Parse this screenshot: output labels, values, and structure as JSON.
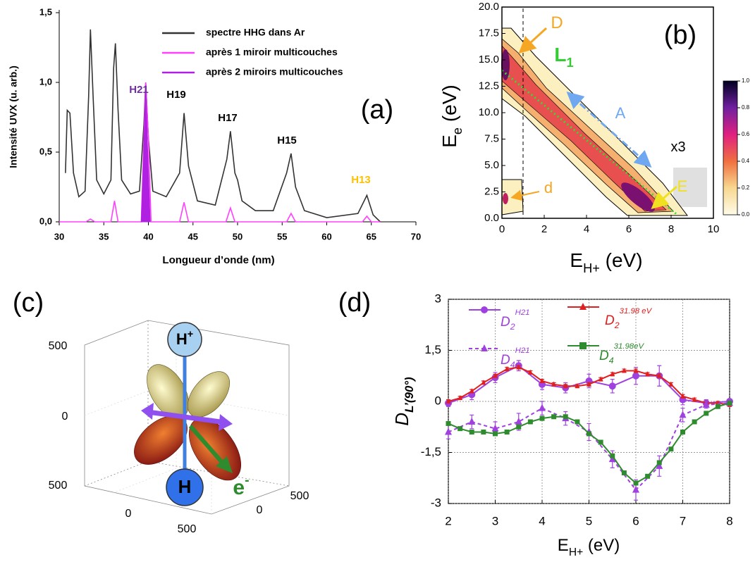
{
  "chart_data": [
    {
      "type": "line",
      "panel_label": "(a)",
      "xlabel": "Longueur d’onde (nm)",
      "ylabel": "Intensité UVX (u. arb.)",
      "xlim": [
        30,
        70
      ],
      "xticks": [
        30,
        35,
        40,
        45,
        50,
        55,
        60,
        65,
        70
      ],
      "ylim": [
        0,
        1.5
      ],
      "yticks": [
        {
          "value": 0,
          "label": "0,0"
        },
        {
          "value": 0.5,
          "label": "0,5"
        },
        {
          "value": 1,
          "label": "1,0"
        },
        {
          "value": 1.5,
          "label": "1,5"
        }
      ],
      "grid": false,
      "annotations": [
        {
          "text": "H21",
          "color": "#7030a0"
        },
        {
          "text": "H19",
          "color": "#000000"
        },
        {
          "text": "H17",
          "color": "#000000"
        },
        {
          "text": "H15",
          "color": "#000000"
        },
        {
          "text": "H13",
          "color": "#ffc000"
        }
      ],
      "series": [
        {
          "name": "spectre HHG dans Ar",
          "color": "#333333",
          "x": [
            30.7,
            30.9,
            31.2,
            31.6,
            32.2,
            32.9,
            33.3,
            33.5,
            33.8,
            34.2,
            35.0,
            35.8,
            36.1,
            36.3,
            36.6,
            37.0,
            38.0,
            39.0,
            39.5,
            39.7,
            40.0,
            40.5,
            42.0,
            43.5,
            44.0,
            44.5,
            45.5,
            47.5,
            48.8,
            49.2,
            49.7,
            50.0,
            50.5,
            52,
            54,
            55.5,
            56,
            56.5,
            57.5,
            60,
            63.5,
            64.5,
            65.2,
            66
          ],
          "values": [
            0.35,
            0.8,
            0.78,
            0.35,
            0.18,
            0.22,
            0.9,
            1.38,
            0.9,
            0.3,
            0.2,
            0.3,
            1.1,
            1.28,
            0.8,
            0.3,
            0.2,
            0.22,
            0.7,
            1.0,
            0.6,
            0.22,
            0.18,
            0.35,
            0.78,
            0.4,
            0.15,
            0.12,
            0.45,
            0.65,
            0.35,
            0.3,
            0.15,
            0.08,
            0.08,
            0.35,
            0.49,
            0.25,
            0.08,
            0.03,
            0.06,
            0.19,
            0.05,
            0
          ]
        },
        {
          "name": "après 1 miroir multicouches",
          "color": "#ff40ff",
          "x": [
            30,
            33,
            33.5,
            34,
            35.8,
            36.2,
            36.6,
            39.2,
            39.5,
            39.7,
            40,
            40.3,
            43.5,
            44,
            44.5,
            48.7,
            49.2,
            49.7,
            55.5,
            56,
            56.5,
            64,
            64.5,
            65,
            66
          ],
          "values": [
            0,
            0,
            0.02,
            0,
            0,
            0.15,
            0,
            0,
            0.6,
            1.0,
            0.6,
            0,
            0,
            0.14,
            0,
            0,
            0.1,
            0,
            0,
            0.06,
            0,
            0,
            0.04,
            0,
            0
          ]
        },
        {
          "name": "après 2 miroirs multicouches",
          "color": "#b020e0",
          "fill": true,
          "x": [
            39.2,
            39.5,
            39.7,
            39.9,
            40.2
          ],
          "values": [
            0,
            0.55,
            0.98,
            0.55,
            0
          ]
        }
      ]
    },
    {
      "type": "contour",
      "panel_label": "(b)",
      "xlabel": {
        "text": "E",
        "sub": "H+",
        "unit": " (eV)"
      },
      "ylabel": {
        "text": "E",
        "sub": "e",
        "unit": " (eV)"
      },
      "xlim": [
        0,
        10
      ],
      "xticks": [
        0,
        2,
        4,
        6,
        8,
        10
      ],
      "ylim": [
        0,
        20
      ],
      "yticks": [
        {
          "value": 0,
          "label": "0.0"
        },
        {
          "value": 2.5,
          "label": "2.5"
        },
        {
          "value": 5,
          "label": "5.0"
        },
        {
          "value": 7.5,
          "label": "7.5"
        },
        {
          "value": 10,
          "label": "10.0"
        },
        {
          "value": 12.5,
          "label": "12.5"
        },
        {
          "value": 15,
          "label": "15.0"
        },
        {
          "value": 17.5,
          "label": "17.5"
        },
        {
          "value": 20,
          "label": "20.0"
        }
      ],
      "colorbar_lim": [
        0,
        1
      ],
      "colorbar_ticks": [
        {
          "value": 0,
          "label": "0.0"
        },
        {
          "value": 0.2,
          "label": "0.2"
        },
        {
          "value": 0.4,
          "label": "0.4"
        },
        {
          "value": 0.6,
          "label": "0.6"
        },
        {
          "value": 0.8,
          "label": "0.8"
        },
        {
          "value": 1,
          "label": "1.0"
        }
      ],
      "annotations": [
        {
          "text": "D",
          "color": "#f5a623"
        },
        {
          "text": "L",
          "sub": "1",
          "color": "#33cc33"
        },
        {
          "text": "A",
          "color": "#6fa8f0"
        },
        {
          "text": "x3",
          "color": "#000000"
        },
        {
          "text": "E",
          "color": "#f0e020"
        },
        {
          "text": "d",
          "color": "#f5a623"
        }
      ]
    },
    {
      "type": "surface3d",
      "panel_label": "(c)",
      "proton_label": {
        "text": "H",
        "sup": "+"
      },
      "atom_label": "H",
      "electron_label": {
        "text": "e",
        "sup": "-"
      },
      "z_tick_labels": [
        "500",
        "0",
        "500"
      ],
      "x_tick_labels": [
        "0",
        "500"
      ],
      "y_tick_labels": [
        "500",
        "0"
      ]
    },
    {
      "type": "line",
      "panel_label": "(d)",
      "xlabel": {
        "text": "E",
        "sub": "H+",
        "unit": " (eV)"
      },
      "ylabel": {
        "text": "D",
        "sub": "L’(90°)"
      },
      "xlim": [
        2,
        8
      ],
      "xticks": [
        2,
        3,
        4,
        5,
        6,
        7,
        8
      ],
      "ylim": [
        -3,
        3
      ],
      "yticks": [
        -3,
        {
          "value": -1.5,
          "label": "-1,5"
        },
        0,
        {
          "value": 1.5,
          "label": "1,5"
        },
        3
      ],
      "grid": true,
      "series": [
        {
          "name": "D",
          "sub": "2",
          "sup": "H21",
          "color": "#a040e0",
          "marker": "circle",
          "x": [
            2,
            2.5,
            3,
            3.5,
            4,
            4.5,
            5,
            5.5,
            6,
            6.5,
            7,
            7.5,
            8
          ],
          "values": [
            -0.05,
            0.2,
            0.7,
            1.05,
            0.5,
            0.4,
            0.6,
            0.45,
            0.75,
            0.75,
            0.05,
            -0.05,
            0
          ],
          "errors": [
            0.1,
            0.15,
            0.15,
            0.15,
            0.15,
            0.15,
            0.2,
            0.2,
            0.25,
            0.3,
            0.15,
            0.1,
            0.05
          ]
        },
        {
          "name": "D",
          "sub": "2",
          "sup": "31.98 eV",
          "color": "#e02020",
          "marker": "triangle",
          "x": [
            2,
            2.25,
            2.5,
            2.75,
            3,
            3.25,
            3.5,
            3.75,
            4,
            4.25,
            4.5,
            4.75,
            5,
            5.25,
            5.5,
            5.75,
            6,
            6.25,
            6.5,
            6.75,
            7,
            7.25,
            7.5,
            7.75,
            8
          ],
          "values": [
            0,
            0.1,
            0.3,
            0.55,
            0.75,
            0.95,
            1.0,
            0.85,
            0.6,
            0.5,
            0.45,
            0.45,
            0.5,
            0.65,
            0.8,
            0.9,
            0.9,
            0.8,
            0.75,
            0.5,
            0.15,
            0.05,
            -0.05,
            -0.05,
            -0.1
          ],
          "errors": [
            0.05,
            0.05,
            0.05,
            0.05,
            0.05,
            0.05,
            0.05,
            0.05,
            0.05,
            0.05,
            0.05,
            0.05,
            0.05,
            0.05,
            0.05,
            0.05,
            0.05,
            0.05,
            0.05,
            0.05,
            0.05,
            0.05,
            0.05,
            0.05,
            0.05
          ]
        },
        {
          "name": "D",
          "sub": "4",
          "sup": "H21",
          "color": "#a040e0",
          "marker": "triangle",
          "dash": true,
          "x": [
            2,
            2.5,
            3,
            3.5,
            4,
            4.5,
            5,
            5.5,
            6,
            6.5,
            7,
            7.5,
            8
          ],
          "values": [
            -0.9,
            -0.6,
            -0.8,
            -0.6,
            -0.2,
            -0.5,
            -0.9,
            -1.7,
            -2.6,
            -1.9,
            -0.4,
            -0.1,
            -0.05
          ],
          "errors": [
            0.2,
            0.2,
            0.2,
            0.25,
            0.2,
            0.2,
            0.25,
            0.25,
            0.3,
            0.3,
            0.2,
            0.1,
            0.05
          ]
        },
        {
          "name": "D",
          "sub": "4",
          "sup": "31.98eV",
          "color": "#2e8b2e",
          "marker": "square",
          "x": [
            2,
            2.25,
            2.5,
            2.75,
            3,
            3.25,
            3.5,
            3.75,
            4,
            4.25,
            4.5,
            4.75,
            5,
            5.25,
            5.5,
            5.75,
            6,
            6.25,
            6.5,
            6.75,
            7,
            7.25,
            7.5,
            7.75,
            8
          ],
          "values": [
            -0.65,
            -0.8,
            -0.9,
            -0.9,
            -0.95,
            -0.9,
            -0.75,
            -0.6,
            -0.5,
            -0.45,
            -0.45,
            -0.6,
            -0.95,
            -1.2,
            -1.6,
            -2.1,
            -2.4,
            -2.2,
            -1.8,
            -1.4,
            -0.9,
            -0.6,
            -0.35,
            -0.15,
            -0.05
          ],
          "errors": [
            0.05,
            0.05,
            0.05,
            0.05,
            0.05,
            0.05,
            0.05,
            0.05,
            0.05,
            0.05,
            0.05,
            0.05,
            0.05,
            0.05,
            0.05,
            0.05,
            0.05,
            0.05,
            0.05,
            0.05,
            0.05,
            0.05,
            0.05,
            0.05,
            0.05
          ]
        }
      ]
    }
  ]
}
